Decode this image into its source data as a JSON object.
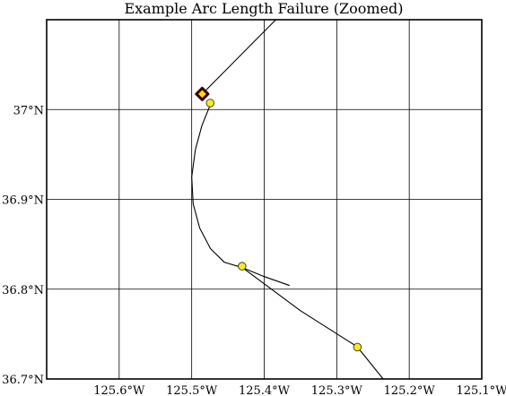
{
  "chart_data": {
    "type": "line",
    "title": "Example Arc Length Failure (Zoomed)",
    "xlabel": "",
    "ylabel": "",
    "xlim": [
      -125.7,
      -125.1
    ],
    "ylim": [
      36.7,
      37.1
    ],
    "grid": true,
    "x_ticks": [
      {
        "value": -125.6,
        "label": "125.6°W"
      },
      {
        "value": -125.5,
        "label": "125.5°W"
      },
      {
        "value": -125.4,
        "label": "125.4°W"
      },
      {
        "value": -125.3,
        "label": "125.3°W"
      },
      {
        "value": -125.2,
        "label": "125.2°W"
      },
      {
        "value": -125.1,
        "label": "125.1°W"
      }
    ],
    "y_ticks": [
      {
        "value": 36.7,
        "label": "36.7°N"
      },
      {
        "value": 36.8,
        "label": "36.8°N"
      },
      {
        "value": 36.9,
        "label": "36.9°N"
      },
      {
        "value": 37.0,
        "label": "37°N"
      }
    ],
    "series": [
      {
        "kind": "track",
        "color": "#000000",
        "points": [
          [
            -125.4855,
            37.0173
          ],
          [
            -125.384,
            37.1
          ]
        ]
      },
      {
        "kind": "track",
        "color": "#000000",
        "points": [
          [
            -125.474,
            37.006
          ],
          [
            -125.486,
            36.982
          ],
          [
            -125.495,
            36.955
          ],
          [
            -125.5,
            36.925
          ],
          [
            -125.498,
            36.895
          ],
          [
            -125.489,
            36.868
          ],
          [
            -125.474,
            36.845
          ],
          [
            -125.455,
            36.83
          ],
          [
            -125.43,
            36.824
          ],
          [
            -125.4,
            36.814
          ],
          [
            -125.365,
            36.804
          ]
        ]
      },
      {
        "kind": "track",
        "color": "#000000",
        "points": [
          [
            -125.43,
            36.824
          ],
          [
            -125.35,
            36.776
          ],
          [
            -125.272,
            36.736
          ],
          [
            -125.236,
            36.7
          ]
        ]
      }
    ],
    "markers": [
      {
        "shape": "diamond",
        "x": -125.4855,
        "y": 37.0173,
        "fill": "#ffdd00",
        "stroke": "#000000",
        "edge": "#5c1010"
      },
      {
        "shape": "circle",
        "x": -125.4745,
        "y": 37.0072,
        "fill": "#f4ea2a",
        "stroke": "#3a3a00"
      },
      {
        "shape": "circle",
        "x": -125.4305,
        "y": 36.8255,
        "fill": "#f4ea2a",
        "stroke": "#3a3a00"
      },
      {
        "shape": "circle",
        "x": -125.2715,
        "y": 36.7355,
        "fill": "#f4ea2a",
        "stroke": "#3a3a00"
      }
    ]
  }
}
